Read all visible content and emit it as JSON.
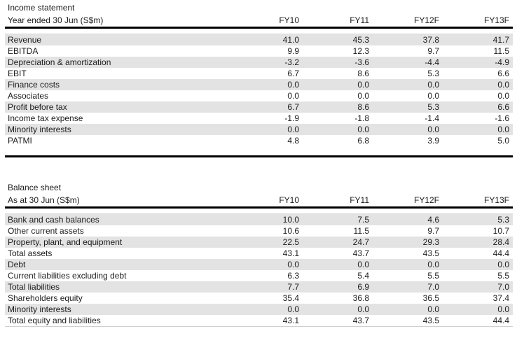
{
  "colors": {
    "zebra_row": "#e3e3e3",
    "header_rule": "#000000",
    "hairline": "#d9d9d9",
    "text": "#1c1c1c"
  },
  "tables": [
    {
      "title": "Income statement",
      "subtitle": "Year ended 30 Jun (S$m)",
      "columns": [
        "FY10",
        "FY11",
        "FY12F",
        "FY13F"
      ],
      "rows": [
        {
          "label": "Revenue",
          "values": [
            "41.0",
            "45.3",
            "37.8",
            "41.7"
          ]
        },
        {
          "label": "EBITDA",
          "values": [
            "9.9",
            "12.3",
            "9.7",
            "11.5"
          ]
        },
        {
          "label": "Depreciation & amortization",
          "values": [
            "-3.2",
            "-3.6",
            "-4.4",
            "-4.9"
          ]
        },
        {
          "label": "EBIT",
          "values": [
            "6.7",
            "8.6",
            "5.3",
            "6.6"
          ]
        },
        {
          "label": "Finance costs",
          "values": [
            "0.0",
            "0.0",
            "0.0",
            "0.0"
          ]
        },
        {
          "label": "Associates",
          "values": [
            "0.0",
            "0.0",
            "0.0",
            "0.0"
          ]
        },
        {
          "label": "Profit before tax",
          "values": [
            "6.7",
            "8.6",
            "5.3",
            "6.6"
          ]
        },
        {
          "label": "Income tax expense",
          "values": [
            "-1.9",
            "-1.8",
            "-1.4",
            "-1.6"
          ]
        },
        {
          "label": "Minority interests",
          "values": [
            "0.0",
            "0.0",
            "0.0",
            "0.0"
          ]
        },
        {
          "label": "PATMI",
          "values": [
            "4.8",
            "6.8",
            "3.9",
            "5.0"
          ]
        }
      ],
      "bottom_rule": "thick"
    },
    {
      "title": "Balance sheet",
      "subtitle": "As at 30 Jun (S$m)",
      "columns": [
        "FY10",
        "FY11",
        "FY12F",
        "FY13F"
      ],
      "rows": [
        {
          "label": "Bank and cash balances",
          "values": [
            "10.0",
            "7.5",
            "4.6",
            "5.3"
          ]
        },
        {
          "label": "Other current assets",
          "values": [
            "10.6",
            "11.5",
            "9.7",
            "10.7"
          ]
        },
        {
          "label": "Property, plant, and equipment",
          "values": [
            "22.5",
            "24.7",
            "29.3",
            "28.4"
          ]
        },
        {
          "label": "Total assets",
          "values": [
            "43.1",
            "43.7",
            "43.5",
            "44.4"
          ]
        },
        {
          "label": "Debt",
          "values": [
            "0.0",
            "0.0",
            "0.0",
            "0.0"
          ]
        },
        {
          "label": "Current liabilities excluding debt",
          "values": [
            "6.3",
            "5.4",
            "5.5",
            "5.5"
          ]
        },
        {
          "label": "Total liabilities",
          "values": [
            "7.7",
            "6.9",
            "7.0",
            "7.0"
          ]
        },
        {
          "label": "Shareholders equity",
          "values": [
            "35.4",
            "36.8",
            "36.5",
            "37.4"
          ]
        },
        {
          "label": "Minority interests",
          "values": [
            "0.0",
            "0.0",
            "0.0",
            "0.0"
          ]
        },
        {
          "label": "Total equity and liabilities",
          "values": [
            "43.1",
            "43.7",
            "43.5",
            "44.4"
          ]
        }
      ],
      "bottom_rule": "thin"
    }
  ]
}
